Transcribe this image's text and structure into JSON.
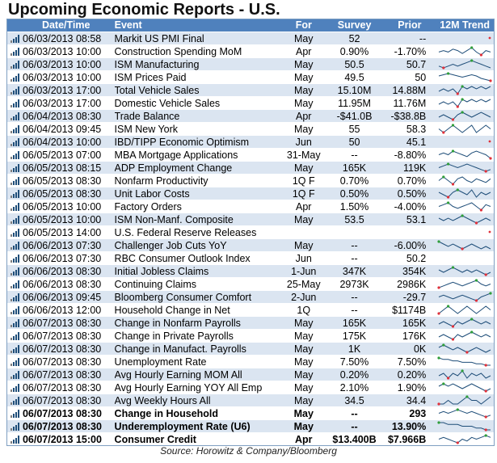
{
  "title": "Upcoming Economic Reports - U.S.",
  "headers": {
    "date": "Date/Time",
    "event": "Event",
    "for": "For",
    "survey": "Survey",
    "prior": "Prior",
    "trend": "12M Trend"
  },
  "colors": {
    "header_bg": "#4f81bd",
    "band": "#dbe5f1",
    "spark_line": "#1f4e79",
    "spark_high": "#2e9e3a",
    "spark_low": "#e0303a"
  },
  "rows": [
    {
      "date": "06/03/2013 08:58",
      "event": "Markit US PMI Final",
      "for": "May",
      "survey": "52",
      "prior": "--",
      "trend": [],
      "bold": false
    },
    {
      "date": "06/03/2013 10:00",
      "event": "Construction Spending MoM",
      "for": "Apr",
      "survey": "0.90%",
      "prior": "-1.70%",
      "trend": [
        5,
        6,
        5,
        7,
        6,
        4,
        6,
        8,
        5,
        3,
        6,
        5
      ],
      "bold": false
    },
    {
      "date": "06/03/2013 10:00",
      "event": "ISM Manufacturing",
      "for": "May",
      "survey": "50.5",
      "prior": "50.7",
      "trend": [
        5,
        4,
        5,
        6,
        5,
        6,
        7,
        8,
        7,
        6,
        5,
        4
      ],
      "bold": false
    },
    {
      "date": "06/03/2013 10:00",
      "event": "ISM Prices Paid",
      "for": "May",
      "survey": "49.5",
      "prior": "50",
      "trend": [
        6,
        7,
        8,
        7,
        6,
        5,
        6,
        7,
        6,
        4,
        3,
        2
      ],
      "bold": false
    },
    {
      "date": "06/03/2013 17:00",
      "event": "Total Vehicle Sales",
      "for": "May",
      "survey": "15.10M",
      "prior": "14.88M",
      "trend": [
        4,
        5,
        4,
        5,
        3,
        6,
        5,
        6,
        5,
        6,
        5,
        6
      ],
      "bold": false
    },
    {
      "date": "06/03/2013 17:00",
      "event": "Domestic Vehicle Sales",
      "for": "May",
      "survey": "11.95M",
      "prior": "11.76M",
      "trend": [
        4,
        5,
        4,
        5,
        3,
        6,
        5,
        6,
        5,
        6,
        5,
        6
      ],
      "bold": false
    },
    {
      "date": "06/04/2013 08:30",
      "event": "Trade Balance",
      "for": "Apr",
      "survey": "-$41.0B",
      "prior": "-$38.8B",
      "trend": [
        5,
        6,
        5,
        4,
        6,
        7,
        6,
        5,
        6,
        7,
        6,
        5
      ],
      "bold": false
    },
    {
      "date": "06/04/2013 09:45",
      "event": "ISM New York",
      "for": "May",
      "survey": "55",
      "prior": "58.3",
      "trend": [
        6,
        5,
        6,
        7,
        6,
        5,
        6,
        7,
        5,
        6,
        7,
        6
      ],
      "bold": false
    },
    {
      "date": "06/04/2013 10:00",
      "event": "IBD/TIPP Economic Optimism",
      "for": "Jun",
      "survey": "50",
      "prior": "45.1",
      "trend": [],
      "bold": false
    },
    {
      "date": "06/05/2013 07:00",
      "event": "MBA Mortgage Applications",
      "for": "31-May",
      "survey": "--",
      "prior": "-8.80%",
      "trend": [
        5,
        6,
        5,
        7,
        6,
        5,
        4,
        6,
        7,
        6,
        5,
        3
      ],
      "bold": false
    },
    {
      "date": "06/05/2013 08:15",
      "event": "ADP Employment Change",
      "for": "May",
      "survey": "165K",
      "prior": "119K",
      "trend": [
        5,
        6,
        7,
        6,
        5,
        6,
        7,
        6,
        5,
        4,
        3,
        4
      ],
      "bold": false
    },
    {
      "date": "06/05/2013 08:30",
      "event": "Nonfarm Productivity",
      "for": "1Q F",
      "survey": "0.70%",
      "prior": "0.70%",
      "trend": [
        5,
        7,
        5,
        3,
        6,
        7,
        5,
        4,
        6,
        5,
        4,
        6
      ],
      "bold": false
    },
    {
      "date": "06/05/2013 08:30",
      "event": "Unit Labor Costs",
      "for": "1Q F",
      "survey": "0.50%",
      "prior": "0.50%",
      "trend": [
        6,
        5,
        4,
        6,
        7,
        6,
        5,
        7,
        4,
        6,
        5,
        6
      ],
      "bold": false
    },
    {
      "date": "06/05/2013 10:00",
      "event": "Factory Orders",
      "for": "Apr",
      "survey": "1.50%",
      "prior": "-4.00%",
      "trend": [
        5,
        6,
        7,
        5,
        4,
        5,
        6,
        7,
        5,
        3,
        6,
        5
      ],
      "bold": false
    },
    {
      "date": "06/05/2013 10:00",
      "event": "ISM Non-Manf. Composite",
      "for": "May",
      "survey": "53.5",
      "prior": "53.1",
      "trend": [
        6,
        5,
        6,
        5,
        6,
        7,
        6,
        5,
        4,
        5,
        6,
        5
      ],
      "bold": false
    },
    {
      "date": "06/05/2013 14:00",
      "event": "U.S. Federal Reserve Releases",
      "for": "",
      "survey": "",
      "prior": "",
      "trend": [],
      "bold": false
    },
    {
      "date": "06/06/2013 07:30",
      "event": "Challenger Job Cuts YoY",
      "for": "May",
      "survey": "--",
      "prior": "-6.00%",
      "trend": [
        7,
        6,
        5,
        6,
        5,
        4,
        5,
        6,
        5,
        4,
        5,
        4
      ],
      "bold": false
    },
    {
      "date": "06/06/2013 07:30",
      "event": "RBC Consumer Outlook Index",
      "for": "Jun",
      "survey": "--",
      "prior": "50.2",
      "trend": [],
      "bold": false
    },
    {
      "date": "06/06/2013 08:30",
      "event": "Initial Jobless Claims",
      "for": "1-Jun",
      "survey": "347K",
      "prior": "354K",
      "trend": [
        6,
        5,
        6,
        7,
        6,
        5,
        6,
        5,
        6,
        5,
        4,
        5
      ],
      "bold": false
    },
    {
      "date": "06/06/2013 08:30",
      "event": "Continuing Claims",
      "for": "25-May",
      "survey": "2973K",
      "prior": "2986K",
      "trend": [
        4,
        5,
        6,
        7,
        6,
        5,
        6,
        7,
        8,
        6,
        5,
        6
      ],
      "bold": false
    },
    {
      "date": "06/06/2013 09:45",
      "event": "Bloomberg Consumer Comfort",
      "for": "2-Jun",
      "survey": "--",
      "prior": "-29.7",
      "trend": [
        5,
        6,
        5,
        4,
        5,
        6,
        5,
        4,
        3,
        5,
        6,
        7
      ],
      "bold": false
    },
    {
      "date": "06/06/2013 12:00",
      "event": "Household Change in Net",
      "for": "1Q",
      "survey": "--",
      "prior": "$1174B",
      "trend": [
        5,
        6,
        7,
        6,
        5,
        6,
        7,
        6,
        5,
        6,
        7,
        6
      ],
      "bold": false
    },
    {
      "date": "06/07/2013 08:30",
      "event": "Change in Nonfarm Payrolls",
      "for": "May",
      "survey": "165K",
      "prior": "165K",
      "trend": [
        5,
        6,
        5,
        4,
        6,
        5,
        6,
        7,
        6,
        5,
        6,
        5
      ],
      "bold": false
    },
    {
      "date": "06/07/2013 08:30",
      "event": "Change in Private Payrolls",
      "for": "May",
      "survey": "175K",
      "prior": "176K",
      "trend": [
        5,
        6,
        5,
        4,
        6,
        5,
        6,
        7,
        6,
        5,
        6,
        5
      ],
      "bold": false
    },
    {
      "date": "06/07/2013 08:30",
      "event": "Change in Manufact. Payrolls",
      "for": "May",
      "survey": "1K",
      "prior": "0K",
      "trend": [
        6,
        7,
        6,
        5,
        6,
        5,
        4,
        5,
        6,
        5,
        4,
        5
      ],
      "bold": false
    },
    {
      "date": "06/07/2013 08:30",
      "event": "Unemployment Rate",
      "for": "May",
      "survey": "7.50%",
      "prior": "7.50%",
      "trend": [
        8,
        7,
        7,
        6,
        6,
        5,
        5,
        5,
        4,
        4,
        3,
        3
      ],
      "bold": false
    },
    {
      "date": "06/07/2013 08:30",
      "event": "Avg Hourly Earning MOM All",
      "for": "May",
      "survey": "0.20%",
      "prior": "0.20%",
      "trend": [
        5,
        6,
        4,
        6,
        5,
        7,
        4,
        6,
        5,
        6,
        4,
        5
      ],
      "bold": false
    },
    {
      "date": "06/07/2013 08:30",
      "event": "Avg Hourly Earning YOY All Emp",
      "for": "May",
      "survey": "2.10%",
      "prior": "1.90%",
      "trend": [
        5,
        6,
        5,
        6,
        5,
        4,
        5,
        6,
        5,
        4,
        3,
        4
      ],
      "bold": false
    },
    {
      "date": "06/07/2013 08:30",
      "event": "Avg Weekly Hours All",
      "for": "May",
      "survey": "34.5",
      "prior": "34.4",
      "trend": [
        5,
        5,
        6,
        5,
        5,
        6,
        7,
        6,
        6,
        5,
        6,
        7
      ],
      "bold": false
    },
    {
      "date": "06/07/2013 08:30",
      "event": "Change in Household",
      "for": "May",
      "survey": "--",
      "prior": "293",
      "trend": [
        5,
        6,
        5,
        6,
        7,
        6,
        5,
        6,
        5,
        4,
        3,
        4
      ],
      "bold": true
    },
    {
      "date": "06/07/2013 08:30",
      "event": "Underemployment Rate (U6)",
      "for": "May",
      "survey": "--",
      "prior": "13.90%",
      "trend": [
        7,
        7,
        6,
        6,
        6,
        5,
        5,
        5,
        4,
        4,
        3,
        3
      ],
      "bold": true
    },
    {
      "date": "06/07/2013 15:00",
      "event": "Consumer Credit",
      "for": "Apr",
      "survey": "$13.400B",
      "prior": "$7.966B",
      "trend": [
        5,
        6,
        5,
        4,
        3,
        5,
        4,
        6,
        5,
        6,
        7,
        6
      ],
      "bold": true
    }
  ],
  "source": "Source: Horowitz & Company/Bloomberg"
}
